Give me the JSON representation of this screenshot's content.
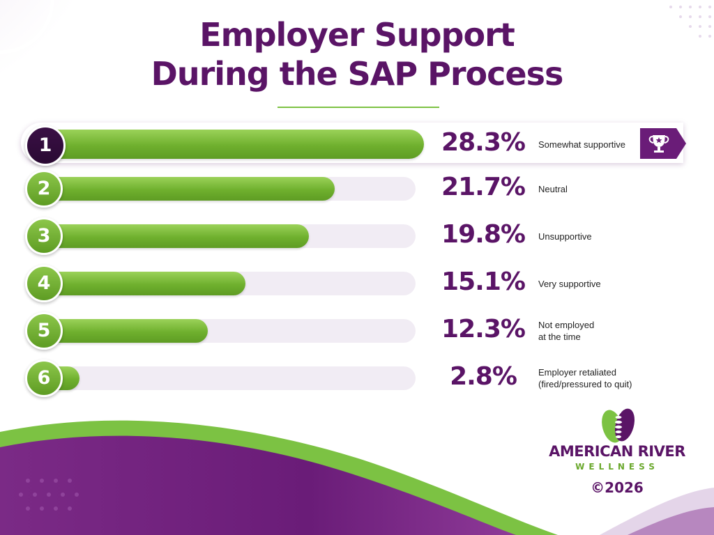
{
  "title_line1": "Employer Support",
  "title_line2": "During the SAP Process",
  "colors": {
    "purple": "#5a1466",
    "green": "#6fb02e",
    "dark_rank": "#2a0a33"
  },
  "icons": [
    "trophy-icon",
    "leaf-spine-logo-icon"
  ],
  "chart_data": {
    "type": "bar",
    "orientation": "horizontal",
    "categories": [
      "Somewhat supportive",
      "Neutral",
      "Unsupportive",
      "Very supportive",
      "Not employed\nat the time",
      "Employer retaliated\n(fired/pressured to quit)"
    ],
    "values": [
      28.3,
      21.7,
      19.8,
      15.1,
      12.3,
      2.8
    ],
    "value_labels": [
      "28.3%",
      "21.7%",
      "19.8%",
      "15.1%",
      "12.3%",
      "2.8%"
    ],
    "ranks": [
      "1",
      "2",
      "3",
      "4",
      "5",
      "6"
    ],
    "unit": "%"
  },
  "brand": {
    "name": "AMERICAN RIVER",
    "sub": "WELLNESS",
    "copyright": "©2026"
  }
}
